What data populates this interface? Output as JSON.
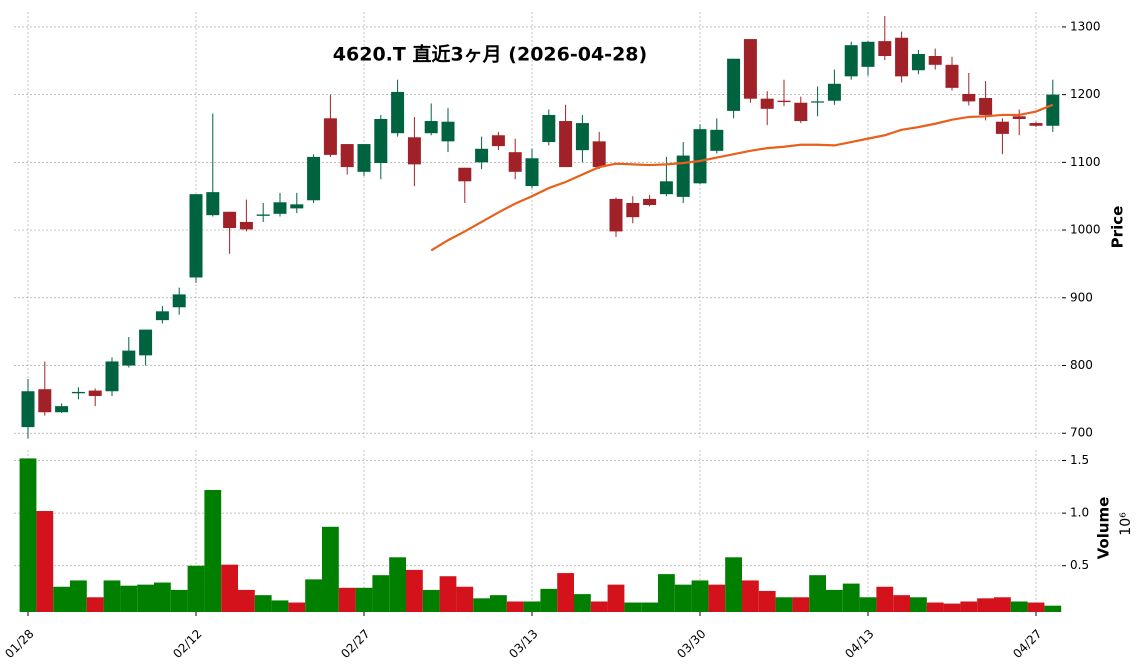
{
  "chart_data": [
    {
      "type": "candlestick",
      "title": "4620.T  直近3ヶ月  (2026-04-28)",
      "ylabel": "Price",
      "categories": [
        "01/28",
        null,
        null,
        null,
        null,
        null,
        null,
        null,
        null,
        null,
        "02/12",
        null,
        null,
        null,
        null,
        null,
        null,
        null,
        null,
        null,
        "02/27",
        null,
        null,
        null,
        null,
        null,
        null,
        null,
        null,
        null,
        "03/13",
        null,
        null,
        null,
        null,
        null,
        null,
        null,
        null,
        null,
        "03/30",
        null,
        null,
        null,
        null,
        null,
        null,
        null,
        null,
        null,
        "04/13",
        null,
        null,
        null,
        null,
        null,
        null,
        null,
        null,
        null,
        "04/27",
        null
      ],
      "open": [
        709,
        765,
        731,
        759,
        763,
        762,
        800,
        815,
        867,
        886,
        930,
        1022,
        1027,
        1012,
        1021,
        1024,
        1032,
        1044,
        1165,
        1127,
        1086,
        1099,
        1143,
        1137,
        1143,
        1131,
        1092,
        1100,
        1140,
        1115,
        1065,
        1130,
        1161,
        1118,
        1131,
        1046,
        1040,
        1046,
        1053,
        1049,
        1069,
        1117,
        1176,
        1282,
        1194,
        1191,
        1188,
        1190,
        1191,
        1227,
        1241,
        1279,
        1284,
        1236,
        1257,
        1244,
        1201,
        1195,
        1160,
        1168,
        1158,
        1154
      ],
      "high": [
        780,
        806,
        744,
        768,
        766,
        812,
        842,
        853,
        888,
        915,
        1053,
        1172,
        1027,
        1045,
        1040,
        1055,
        1055,
        1112,
        1200,
        1127,
        1127,
        1170,
        1222,
        1167,
        1187,
        1180,
        1092,
        1138,
        1145,
        1135,
        1120,
        1178,
        1185,
        1170,
        1145,
        1048,
        1050,
        1052,
        1108,
        1130,
        1156,
        1165,
        1253,
        1282,
        1205,
        1222,
        1197,
        1212,
        1237,
        1278,
        1279,
        1316,
        1293,
        1266,
        1268,
        1256,
        1232,
        1220,
        1165,
        1178,
        1160,
        1222
      ],
      "low": [
        692,
        726,
        730,
        750,
        740,
        755,
        797,
        800,
        862,
        875,
        922,
        1020,
        965,
        998,
        1012,
        1020,
        1025,
        1040,
        1108,
        1082,
        1080,
        1075,
        1138,
        1065,
        1140,
        1115,
        1040,
        1090,
        1118,
        1075,
        1062,
        1125,
        1093,
        1100,
        1090,
        990,
        1010,
        1035,
        1050,
        1040,
        1068,
        1113,
        1165,
        1188,
        1155,
        1183,
        1158,
        1168,
        1185,
        1222,
        1228,
        1251,
        1218,
        1230,
        1237,
        1206,
        1184,
        1162,
        1112,
        1140,
        1152,
        1145
      ],
      "close": [
        762,
        731,
        740,
        761,
        755,
        806,
        822,
        853,
        880,
        905,
        1053,
        1056,
        1003,
        1001,
        1023,
        1041,
        1038,
        1108,
        1111,
        1093,
        1127,
        1164,
        1204,
        1097,
        1161,
        1160,
        1072,
        1120,
        1124,
        1086,
        1106,
        1170,
        1093,
        1158,
        1093,
        998,
        1019,
        1037,
        1072,
        1110,
        1149,
        1148,
        1253,
        1194,
        1179,
        1189,
        1161,
        1190,
        1216,
        1273,
        1278,
        1257,
        1227,
        1260,
        1244,
        1210,
        1190,
        1170,
        1142,
        1164,
        1154,
        1200
      ],
      "up_color": "#006340",
      "down_color": "#a02128",
      "ma": {
        "color": "#e8601c",
        "values": [
          null,
          null,
          null,
          null,
          null,
          null,
          null,
          null,
          null,
          null,
          null,
          null,
          null,
          null,
          null,
          null,
          null,
          null,
          null,
          null,
          null,
          null,
          null,
          null,
          970,
          985,
          998,
          1012,
          1026,
          1039,
          1050,
          1062,
          1071,
          1082,
          1093,
          1098,
          1097,
          1096,
          1097,
          1099,
          1102,
          1107,
          1112,
          1117,
          1121,
          1123,
          1126,
          1126,
          1125,
          1130,
          1135,
          1140,
          1148,
          1152,
          1157,
          1163,
          1167,
          1168,
          1170,
          1170,
          1175,
          1185
        ]
      },
      "ylim": [
        690,
        1322
      ],
      "yticks": [
        700,
        800,
        900,
        1000,
        1100,
        1200,
        1300
      ],
      "grid": true
    },
    {
      "type": "bar",
      "ylabel": "Volume",
      "scale_label": "10⁶",
      "values": [
        1.52,
        1.02,
        0.3,
        0.36,
        0.2,
        0.36,
        0.31,
        0.32,
        0.34,
        0.27,
        0.5,
        1.22,
        0.51,
        0.27,
        0.22,
        0.17,
        0.15,
        0.37,
        0.87,
        0.29,
        0.29,
        0.41,
        0.58,
        0.46,
        0.27,
        0.4,
        0.3,
        0.19,
        0.22,
        0.16,
        0.16,
        0.28,
        0.43,
        0.23,
        0.16,
        0.32,
        0.15,
        0.15,
        0.42,
        0.32,
        0.36,
        0.32,
        0.58,
        0.36,
        0.26,
        0.2,
        0.2,
        0.41,
        0.27,
        0.33,
        0.2,
        0.3,
        0.22,
        0.2,
        0.15,
        0.14,
        0.16,
        0.19,
        0.2,
        0.16,
        0.15,
        0.12
      ],
      "up_color": "#007f00",
      "down_color": "#d3121b",
      "ylim": [
        0.06,
        1.6
      ],
      "yticks": [
        0.5,
        {
          "value": 1,
          "label": "1.0"
        },
        1.5
      ],
      "grid": true
    }
  ]
}
